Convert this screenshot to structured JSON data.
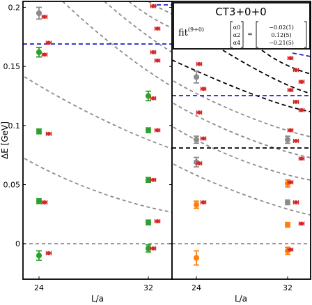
{
  "chart_data": [
    {
      "type": "scatter",
      "title": "",
      "xlabel": "L/a",
      "ylabel": "ΔE [GeV]",
      "xticks": [
        "24",
        "32"
      ],
      "yticks": [
        "0",
        "0.05",
        "0.1",
        "0.15",
        "0.2"
      ],
      "ylim": [
        -0.03,
        0.205
      ],
      "grid": false,
      "series": [
        {
          "color": "#8c8c8c",
          "points": [
            {
              "x": 24,
              "y": 0.195,
              "err": 0.005
            }
          ]
        },
        {
          "color": "#2ca02c",
          "points": [
            {
              "x": 24,
              "y": 0.162,
              "err": 0.004
            },
            {
              "x": 24,
              "y": 0.095,
              "err": 0.002
            },
            {
              "x": 24,
              "y": 0.036,
              "err": 0.002
            },
            {
              "x": 24,
              "y": -0.01,
              "err": 0.004
            },
            {
              "x": 32,
              "y": 0.125,
              "err": 0.004
            },
            {
              "x": 32,
              "y": 0.096,
              "err": 0.002
            },
            {
              "x": 32,
              "y": 0.054,
              "err": 0.002
            },
            {
              "x": 32,
              "y": 0.018,
              "err": 0.002
            },
            {
              "x": 32,
              "y": -0.004,
              "err": 0.003
            }
          ]
        },
        {
          "color": "#d62728",
          "points": [
            {
              "x": 24,
              "y": 0.192
            },
            {
              "x": 24,
              "y": 0.17
            },
            {
              "x": 24,
              "y": 0.16
            },
            {
              "x": 24,
              "y": 0.093
            },
            {
              "x": 24,
              "y": 0.035
            },
            {
              "x": 24,
              "y": -0.008
            },
            {
              "x": 32,
              "y": 0.201
            },
            {
              "x": 32,
              "y": 0.182
            },
            {
              "x": 32,
              "y": 0.162
            },
            {
              "x": 32,
              "y": 0.155
            },
            {
              "x": 32,
              "y": 0.123
            },
            {
              "x": 32,
              "y": 0.096
            },
            {
              "x": 32,
              "y": 0.054
            },
            {
              "x": 32,
              "y": 0.019
            },
            {
              "x": 32,
              "y": -0.004
            }
          ]
        }
      ]
    },
    {
      "type": "scatter",
      "title": "CT3+0+0",
      "xlabel": "L/a",
      "xticks": [
        "24",
        "32"
      ],
      "ylim": [
        -0.03,
        0.205
      ],
      "grid": false,
      "annotation": {
        "fit_label": "fit",
        "fit_sup": "(9+0)",
        "params": [
          "α0",
          "α2",
          "α4"
        ],
        "values": [
          "−0.02(1)",
          "0.12(5)",
          "−0.21(5)"
        ]
      },
      "series": [
        {
          "color": "#8c8c8c",
          "points": [
            {
              "x": 24,
              "y": 0.141,
              "err": 0.005
            },
            {
              "x": 24,
              "y": 0.088,
              "err": 0.003
            },
            {
              "x": 24,
              "y": 0.069,
              "err": 0.004
            },
            {
              "x": 32,
              "y": 0.088,
              "err": 0.003
            },
            {
              "x": 32,
              "y": 0.035,
              "err": 0.002
            }
          ]
        },
        {
          "color": "#ff7f0e",
          "points": [
            {
              "x": 24,
              "y": 0.033,
              "err": 0.003
            },
            {
              "x": 24,
              "y": -0.012,
              "err": 0.006
            },
            {
              "x": 32,
              "y": 0.051,
              "err": 0.003
            },
            {
              "x": 32,
              "y": 0.016,
              "err": 0.002
            },
            {
              "x": 32,
              "y": -0.006,
              "err": 0.003
            }
          ]
        },
        {
          "color": "#d62728",
          "points": [
            {
              "x": 24,
              "y": 0.152
            },
            {
              "x": 24,
              "y": 0.131
            },
            {
              "x": 24,
              "y": 0.111
            },
            {
              "x": 24,
              "y": 0.089
            },
            {
              "x": 24,
              "y": 0.068
            },
            {
              "x": 24,
              "y": 0.035
            },
            {
              "x": 32,
              "y": 0.157
            },
            {
              "x": 32,
              "y": 0.147
            },
            {
              "x": 32,
              "y": 0.137
            },
            {
              "x": 32,
              "y": 0.13
            },
            {
              "x": 32,
              "y": 0.12
            },
            {
              "x": 32,
              "y": 0.113
            },
            {
              "x": 32,
              "y": 0.096
            },
            {
              "x": 32,
              "y": 0.087
            },
            {
              "x": 32,
              "y": 0.072
            },
            {
              "x": 32,
              "y": 0.052
            },
            {
              "x": 32,
              "y": 0.035
            },
            {
              "x": 32,
              "y": 0.017
            },
            {
              "x": 32,
              "y": -0.005
            }
          ]
        }
      ]
    }
  ]
}
